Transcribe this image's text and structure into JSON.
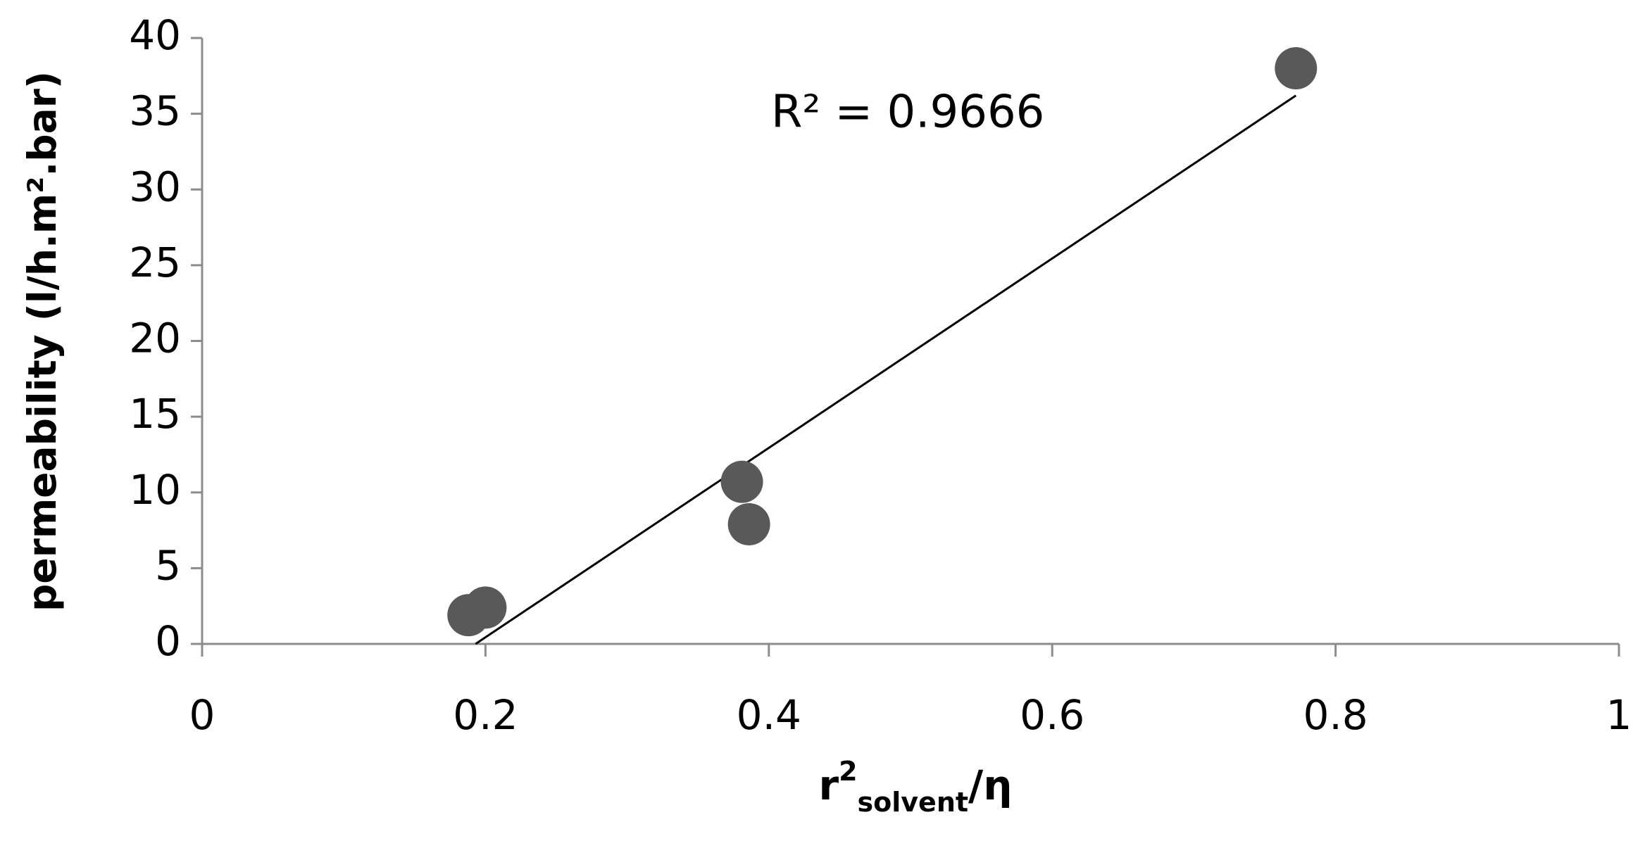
{
  "chart_data": {
    "type": "scatter",
    "xlabel": {
      "base": "r",
      "sup": "2",
      "sub": "solvent",
      "tail": "/η"
    },
    "ylabel": "permeability (l/h.m².bar)",
    "annotation": "R² = 0.9666",
    "series": [
      {
        "color": "#595959",
        "x": [
          0.188,
          0.2,
          0.381,
          0.386,
          0.772
        ],
        "values": [
          1.9,
          2.4,
          10.7,
          7.9,
          38
        ]
      }
    ],
    "trendline": {
      "color": "#000000",
      "x": [
        0.193,
        0.772
      ],
      "values": [
        0,
        36.2
      ]
    },
    "xlim": [
      0,
      1
    ],
    "xticks": [
      0,
      0.2,
      0.4,
      0.6,
      0.8,
      1
    ],
    "ylim": [
      0,
      40
    ],
    "yticks": [
      0,
      5,
      10,
      15,
      20,
      25,
      30,
      35,
      40
    ]
  }
}
